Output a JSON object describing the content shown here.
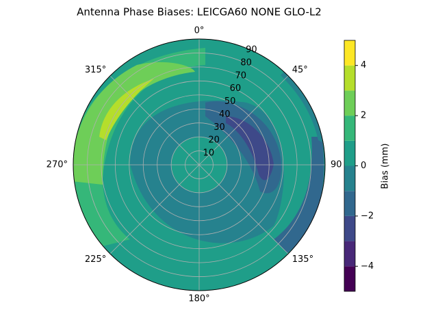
{
  "chart_data": {
    "type": "polar_contour",
    "title": "Antenna Phase Biases: LEICGA60        NONE GLO-L2",
    "thetaticks": [
      {
        "value": 0,
        "label": "0°"
      },
      {
        "value": 45,
        "label": "45°"
      },
      {
        "value": 90,
        "label": "90"
      },
      {
        "value": 135,
        "label": "135°"
      },
      {
        "value": 180,
        "label": "180°"
      },
      {
        "value": 225,
        "label": "225°"
      },
      {
        "value": 270,
        "label": "270°"
      },
      {
        "value": 315,
        "label": "315°"
      }
    ],
    "rlim": [
      0,
      90
    ],
    "rticks": [
      10,
      20,
      30,
      40,
      50,
      60,
      70,
      80,
      90
    ],
    "levels": [
      -5,
      -4,
      -3,
      -2,
      -1,
      0,
      1,
      2,
      3,
      4,
      5
    ],
    "colors": [
      "#440154",
      "#482878",
      "#3e4989",
      "#31688e",
      "#26828e",
      "#1f9e89",
      "#35b779",
      "#6ece58",
      "#b5de2b",
      "#fde725"
    ],
    "clim": [
      -5,
      5
    ],
    "cticks": [
      {
        "value": -4,
        "label": "−4"
      },
      {
        "value": -2,
        "label": "−2"
      },
      0,
      2,
      4
    ],
    "colorbar_label": "Bias (mm)"
  }
}
